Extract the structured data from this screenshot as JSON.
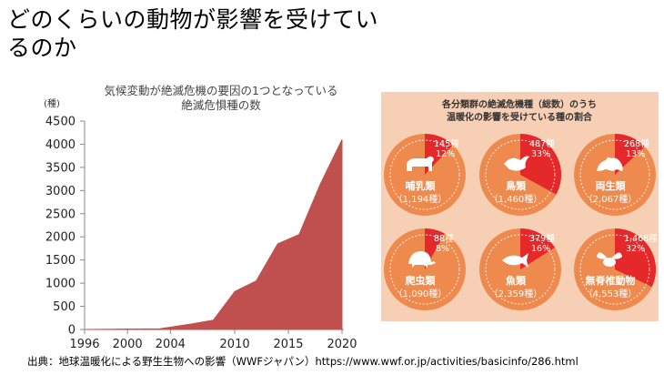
{
  "slide": {
    "title": "どのくらいの動物が影響を受けているのか",
    "source": "出典：地球温暖化による野生生物への影響（WWFジャパン）https://www.wwf.or.jp/activities/basicinfo/286.html"
  },
  "chart_data": [
    {
      "type": "area",
      "title": "気候変動が絶滅危機の要因の1つとなっている",
      "subtitle": "絶滅危惧種の数",
      "ylabel": "(種)",
      "xlabel": "",
      "xlim": [
        1996,
        2020
      ],
      "ylim": [
        0,
        4500
      ],
      "x_ticks": [
        1996,
        2000,
        2004,
        2010,
        2015,
        2020
      ],
      "y_ticks": [
        0,
        500,
        1000,
        1500,
        2000,
        2500,
        3000,
        3500,
        4000,
        4500
      ],
      "x": [
        1996,
        2000,
        2003,
        2006,
        2008,
        2010,
        2012,
        2014,
        2016,
        2018,
        2020
      ],
      "values": [
        0,
        10,
        15,
        120,
        200,
        820,
        1050,
        1850,
        2050,
        3150,
        4100
      ],
      "color": "#c0504d",
      "grid": false
    },
    {
      "type": "pie",
      "title": "各分類群の絶滅危機種（総数）のうち",
      "subtitle": "温暖化の影響を受けている種の割合",
      "affected_color": "#e5282a",
      "rest_color": "#ef8a4f",
      "groups": [
        {
          "name": "哺乳類",
          "total": "（1,194種）",
          "count": "145種",
          "pct_label": "12%",
          "fraction": 0.12,
          "icon": "bear-icon"
        },
        {
          "name": "鳥類",
          "total": "（1,460種）",
          "count": "487種",
          "pct_label": "33%",
          "fraction": 0.33,
          "icon": "bird-icon"
        },
        {
          "name": "両生類",
          "total": "（2,067種）",
          "count": "268種",
          "pct_label": "13%",
          "fraction": 0.13,
          "icon": "frog-icon"
        },
        {
          "name": "爬虫類",
          "total": "（1,090種）",
          "count": "88種",
          "pct_label": "8%",
          "fraction": 0.08,
          "icon": "turtle-icon"
        },
        {
          "name": "魚類",
          "total": "（2,359種）",
          "count": "379種",
          "pct_label": "16%",
          "fraction": 0.16,
          "icon": "fish-icon"
        },
        {
          "name": "無脊椎動物",
          "total": "（4,553種）",
          "count": "1,468種",
          "pct_label": "32%",
          "fraction": 0.32,
          "icon": "bee-icon"
        }
      ]
    }
  ]
}
